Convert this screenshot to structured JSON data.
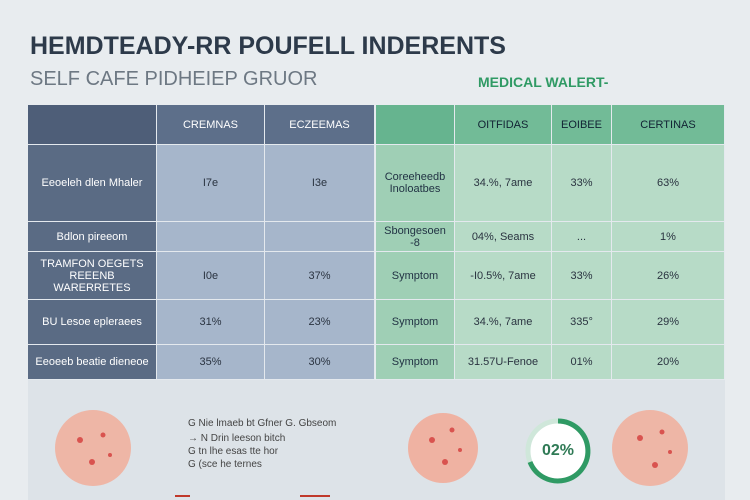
{
  "header": {
    "title": "HEMDTEADY-RR POUFELL INDERENTS",
    "subtitle": "SELF CAFE PIDHEIEP GRUOR",
    "alert": "MEDICAL WALERT-"
  },
  "left_table": {
    "headers": [
      "CREMNAS",
      "ECZEEMAS"
    ],
    "rows": [
      [
        "Eeoeleh dlen Mhaler",
        "I7e",
        "I3e"
      ],
      [
        "Bdlon pireeom"
      ],
      [
        "TRAMFON OEGETS REEENB WARERRETES",
        "I0e",
        "37%"
      ],
      [
        "BU Lesoe epleraees",
        "31%",
        "23%"
      ],
      [
        "Eeoeeb beatie dieneoe",
        "35%",
        "30%"
      ]
    ]
  },
  "right_table": {
    "headers": [
      "OITFIDAS",
      "EOIBEE",
      "CERTINAS"
    ],
    "rows": [
      [
        "Coreeheedb Inoloatbes",
        "34.%, 7ame",
        "33%",
        "63%"
      ],
      [
        "Sbongesoen -8",
        "04%, Seams",
        "...",
        "1%"
      ],
      [
        "Symptom",
        "-I0.5%, 7ame",
        "33%",
        "26%"
      ],
      [
        "Symptom",
        "34.%, 7ame",
        "335°",
        "29%"
      ],
      [
        "Symptom",
        "31.57U-Fenoe",
        "01%",
        "20%"
      ]
    ]
  },
  "notes": [
    "G Nie lmaeb bt Gfner G. Gbseom",
    "→ N Drin leeson bitch",
    "G tn lhe esas tte hor",
    "G (sce he ternes"
  ],
  "gauge_label": "02%"
}
